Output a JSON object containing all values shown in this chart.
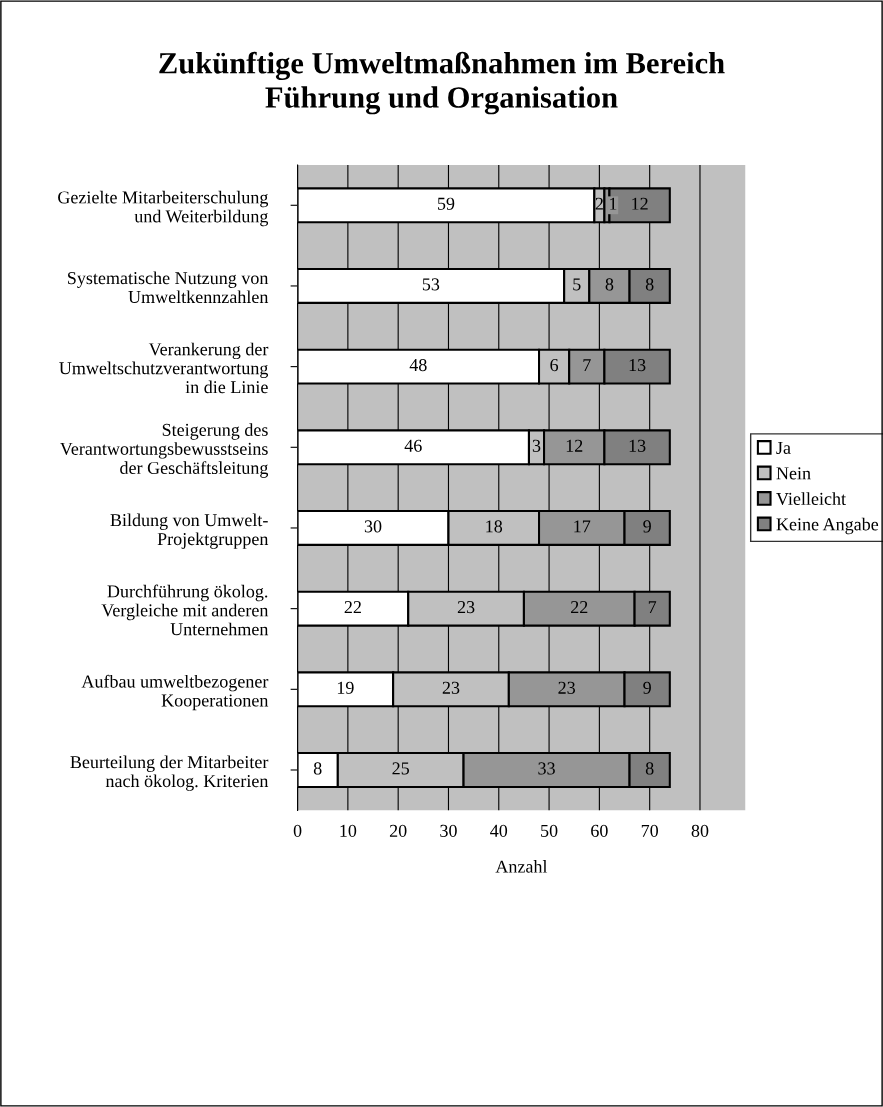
{
  "chart_data": {
    "type": "bar",
    "orientation": "horizontal",
    "stacked": true,
    "title": "Zukünftige Umweltmaßnahmen im Bereich\nFührung und Organisation",
    "xlabel": "Anzahl",
    "categories": [
      "Gezielte Mitarbeiterschulung\nund Weiterbildung",
      "Systematische Nutzung von\nUmweltkennzahlen",
      "Verankerung der\nUmweltschutzverantwortung\nin die Linie",
      "Steigerung des\nVerantwortungsbewusstseins\nder Geschäftsleitung",
      "Bildung von Umwelt-\nProjektgruppen",
      "Durchführung ökolog.\nVergleiche mit anderen\nUnternehmen",
      "Aufbau umweltbezogener\nKooperationen",
      "Beurteilung der Mitarbeiter\nnach ökolog. Kriterien"
    ],
    "series": [
      {
        "name": "Ja",
        "color": "#ffffff",
        "values": [
          59,
          53,
          48,
          46,
          30,
          22,
          19,
          8
        ]
      },
      {
        "name": "Nein",
        "color": "#c0c0c0",
        "values": [
          2,
          5,
          6,
          3,
          18,
          23,
          23,
          25
        ]
      },
      {
        "name": "Vielleicht",
        "color": "#969696",
        "values": [
          1,
          8,
          7,
          12,
          17,
          22,
          23,
          33
        ]
      },
      {
        "name": "Keine Angabe",
        "color": "#808080",
        "values": [
          12,
          8,
          13,
          13,
          9,
          7,
          9,
          8
        ]
      }
    ],
    "xlim": [
      0,
      89
    ],
    "xticks": [
      0,
      10,
      20,
      30,
      40,
      50,
      60,
      70,
      80
    ],
    "grid": "x",
    "legend": "right",
    "data_labels": true
  }
}
